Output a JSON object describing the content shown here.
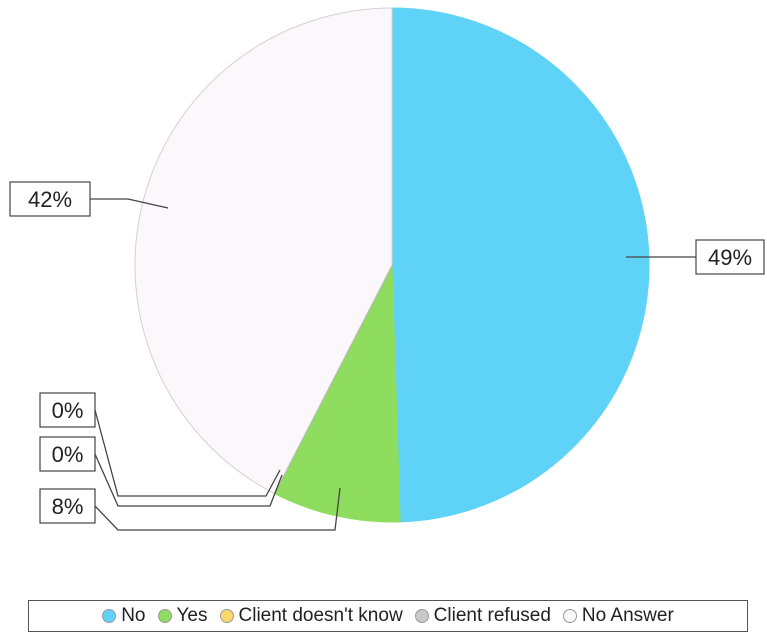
{
  "chart_data": {
    "type": "pie",
    "categories": [
      "No",
      "Yes",
      "Client doesn't know",
      "Client refused",
      "No Answer"
    ],
    "values": [
      49,
      8,
      0,
      0,
      42
    ],
    "labels": [
      "49%",
      "8%",
      "0%",
      "0%",
      "42%"
    ],
    "colors": [
      "#5fd3f7",
      "#8fdd5f",
      "#f7d96b",
      "#c9c9c9",
      "#fbf7fb"
    ],
    "legend": "bottom"
  }
}
